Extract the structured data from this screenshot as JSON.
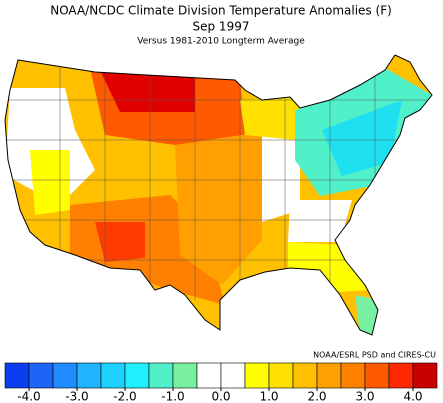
{
  "title": "NOAA/NCDC Climate Division Temperature Anomalies (F)",
  "date": "Sep 1997",
  "subtitle": "Versus 1981-2010 Longterm Average",
  "credit": "NOAA/ESRL PSD and CIRES-CU",
  "colorbar": {
    "bins": [
      -4.5,
      -4,
      -3.5,
      -3,
      -2.5,
      -2,
      -1.5,
      -1,
      -0.5,
      0,
      0.5,
      1,
      1.5,
      2,
      2.5,
      3,
      3.5,
      4,
      4.5
    ],
    "colors": [
      "#0a3cf0",
      "#1e64f5",
      "#1e8cff",
      "#1eb4ff",
      "#1ed2ff",
      "#1ef0ff",
      "#50f0c8",
      "#78f0a0",
      "#ffffff",
      "#ffffff",
      "#ffff00",
      "#ffe000",
      "#ffc000",
      "#ffa000",
      "#ff8000",
      "#ff5a00",
      "#ff2800",
      "#c80000"
    ],
    "ticks": [
      {
        "value": -4,
        "label": "-4.0"
      },
      {
        "value": -3,
        "label": "-3.0"
      },
      {
        "value": -2,
        "label": "-2.0"
      },
      {
        "value": -1,
        "label": "-1.0"
      },
      {
        "value": 0,
        "label": "0.0"
      },
      {
        "value": 1,
        "label": "1.0"
      },
      {
        "value": 2,
        "label": "2.0"
      },
      {
        "value": 3,
        "label": "3.0"
      },
      {
        "value": 4,
        "label": "4.0"
      }
    ]
  }
}
